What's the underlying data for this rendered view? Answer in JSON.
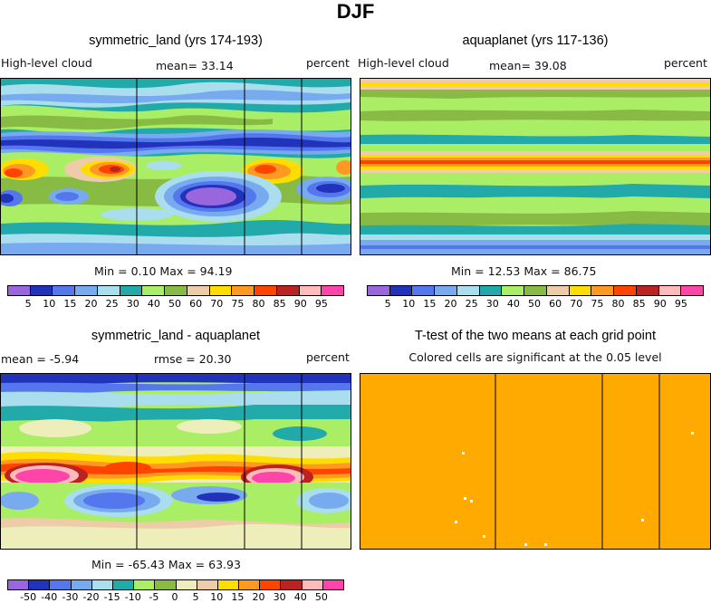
{
  "figure": {
    "suptitle": "DJF"
  },
  "colors": {
    "cloud_scale": [
      "#9966dd",
      "#2233bb",
      "#5577ee",
      "#77aaee",
      "#aaddee",
      "#22aaaa",
      "#aaee66",
      "#88bb44",
      "#eeccaa",
      "#ffdd00",
      "#ff9922",
      "#ff4400",
      "#bb2222",
      "#ffbbbb",
      "#ff44aa"
    ],
    "diff_scale": [
      "#9966dd",
      "#2233bb",
      "#5577ee",
      "#77aaee",
      "#aaddee",
      "#22aaaa",
      "#aaee66",
      "#88bb44",
      "#eeeebb",
      "#eeccaa",
      "#ffdd00",
      "#ff9922",
      "#ff4400",
      "#bb2222",
      "#ffbbbb",
      "#ff44aa"
    ],
    "ttest_fill": "#ffaa00"
  },
  "chart_data": [
    {
      "type": "heatmap",
      "title": "symmetric_land (yrs 174-193)",
      "left_label": "High-level cloud",
      "mean_label": "mean=  33.14",
      "units": "percent",
      "stats": "Min =   0.10 Max =  94.19",
      "min": 0.1,
      "max": 94.19,
      "mean": 33.14,
      "colorbar_ticks": [
        "5",
        "10",
        "15",
        "20",
        "25",
        "30",
        "40",
        "50",
        "60",
        "70",
        "75",
        "80",
        "85",
        "90",
        "95"
      ]
    },
    {
      "type": "heatmap",
      "title": "aquaplanet (yrs 117-136)",
      "left_label": "High-level cloud",
      "mean_label": "mean=  39.08",
      "units": "percent",
      "stats": "Min =  12.53 Max =  86.75",
      "min": 12.53,
      "max": 86.75,
      "mean": 39.08,
      "colorbar_ticks": [
        "5",
        "10",
        "15",
        "20",
        "25",
        "30",
        "40",
        "50",
        "60",
        "70",
        "75",
        "80",
        "85",
        "90",
        "95"
      ]
    },
    {
      "type": "heatmap",
      "title": "symmetric_land - aquaplanet",
      "left_label": "mean =   -5.94",
      "mean_label": "rmse =  20.30",
      "units": "percent",
      "stats": "Min = -65.43 Max =  63.93",
      "min": -65.43,
      "max": 63.93,
      "mean": -5.94,
      "rmse": 20.3,
      "colorbar_ticks": [
        "-50",
        "-40",
        "-30",
        "-20",
        "-15",
        "-10",
        "-5",
        "0",
        "5",
        "10",
        "15",
        "20",
        "30",
        "40",
        "50"
      ]
    },
    {
      "type": "heatmap",
      "title": "T-test of the two means at each grid point",
      "subtitle": "Colored cells are significant at the 0.05 level"
    }
  ]
}
